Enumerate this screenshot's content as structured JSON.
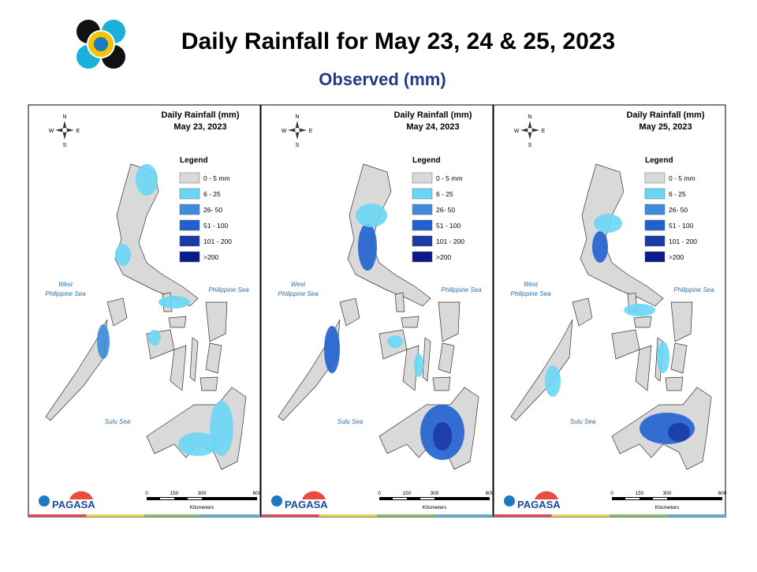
{
  "header": {
    "title": "Daily Rainfall for May 23, 24 & 25, 2023",
    "subtitle": "Observed (mm)"
  },
  "panels": [
    {
      "title": "Daily Rainfall (mm)",
      "date": "May 23, 2023"
    },
    {
      "title": "Daily Rainfall (mm)",
      "date": "May 24, 2023"
    },
    {
      "title": "Daily Rainfall (mm)",
      "date": "May 25, 2023"
    }
  ],
  "legend": {
    "title": "Legend",
    "items": [
      {
        "label": "0 - 5 mm",
        "color": "#d9d9d9"
      },
      {
        "label": "6 - 25",
        "color": "#6ad6f5"
      },
      {
        "label": "26- 50",
        "color": "#3e8cdc"
      },
      {
        "label": "51 - 100",
        "color": "#2060d0"
      },
      {
        "label": "101 - 200",
        "color": "#1a3aa6"
      },
      {
        "label": ">200",
        "color": "#0a1a8c"
      }
    ]
  },
  "seas": {
    "west_line1": "West",
    "west_line2": "Philippine Sea",
    "east": "Philippine Sea",
    "south": "Sulu Sea"
  },
  "compass": {
    "n": "N",
    "w": "W",
    "e": "E",
    "s": "S"
  },
  "scale": {
    "ticks": [
      "0",
      "150",
      "300",
      "600"
    ],
    "unit": "Kilometers"
  },
  "logo": {
    "name": "PAGASA"
  }
}
